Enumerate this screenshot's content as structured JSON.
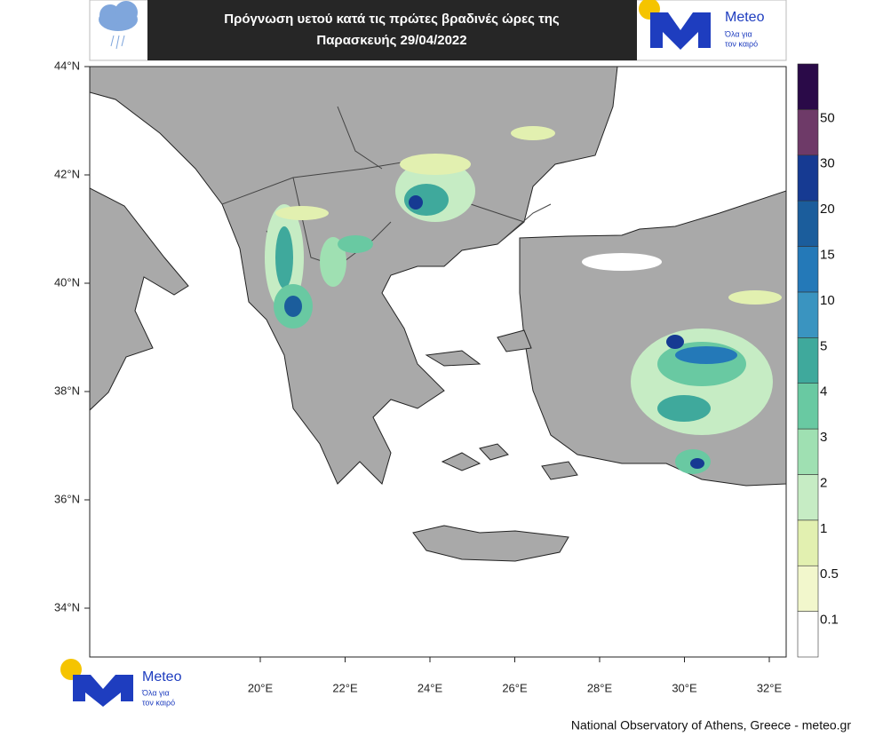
{
  "header": {
    "title_lines": [
      "Πρόγνωση υετού κατά τις πρώτες βραδινές ώρες της",
      "Παρασκευής 29/04/2022"
    ],
    "logo": {
      "name": "Meteo",
      "tagline_1": "Όλα για",
      "tagline_2": "τον καιρό"
    }
  },
  "map": {
    "lat_ticks": [
      {
        "value": 44,
        "label": "44°N"
      },
      {
        "value": 42,
        "label": "42°N"
      },
      {
        "value": 40,
        "label": "40°N"
      },
      {
        "value": 38,
        "label": "38°N"
      },
      {
        "value": 36,
        "label": "36°N"
      },
      {
        "value": 34,
        "label": "34°N"
      }
    ],
    "lon_ticks": [
      {
        "value": 20,
        "label": "20°E"
      },
      {
        "value": 22,
        "label": "22°E"
      },
      {
        "value": 24,
        "label": "24°E"
      },
      {
        "value": 26,
        "label": "26°E"
      },
      {
        "value": 28,
        "label": "28°E"
      },
      {
        "value": 30,
        "label": "30°E"
      },
      {
        "value": 32,
        "label": "32°E"
      }
    ]
  },
  "colorbar": {
    "levels": [
      0.1,
      0.5,
      1,
      2,
      3,
      4,
      5,
      10,
      15,
      20,
      30,
      50
    ],
    "colors": [
      "#ffffff",
      "#f2f7cc",
      "#e2f0b0",
      "#c6ecc4",
      "#9fe0b2",
      "#69c9a2",
      "#3fa99c",
      "#3a94c0",
      "#2479b8",
      "#1b5d9c",
      "#163a92",
      "#6e3a68",
      "#2a0a48"
    ]
  },
  "bottom_logo": {
    "name": "Meteo",
    "tagline_1": "Όλα για",
    "tagline_2": "τον καιρό"
  },
  "footer": "National Observatory of Athens, Greece - meteo.gr"
}
